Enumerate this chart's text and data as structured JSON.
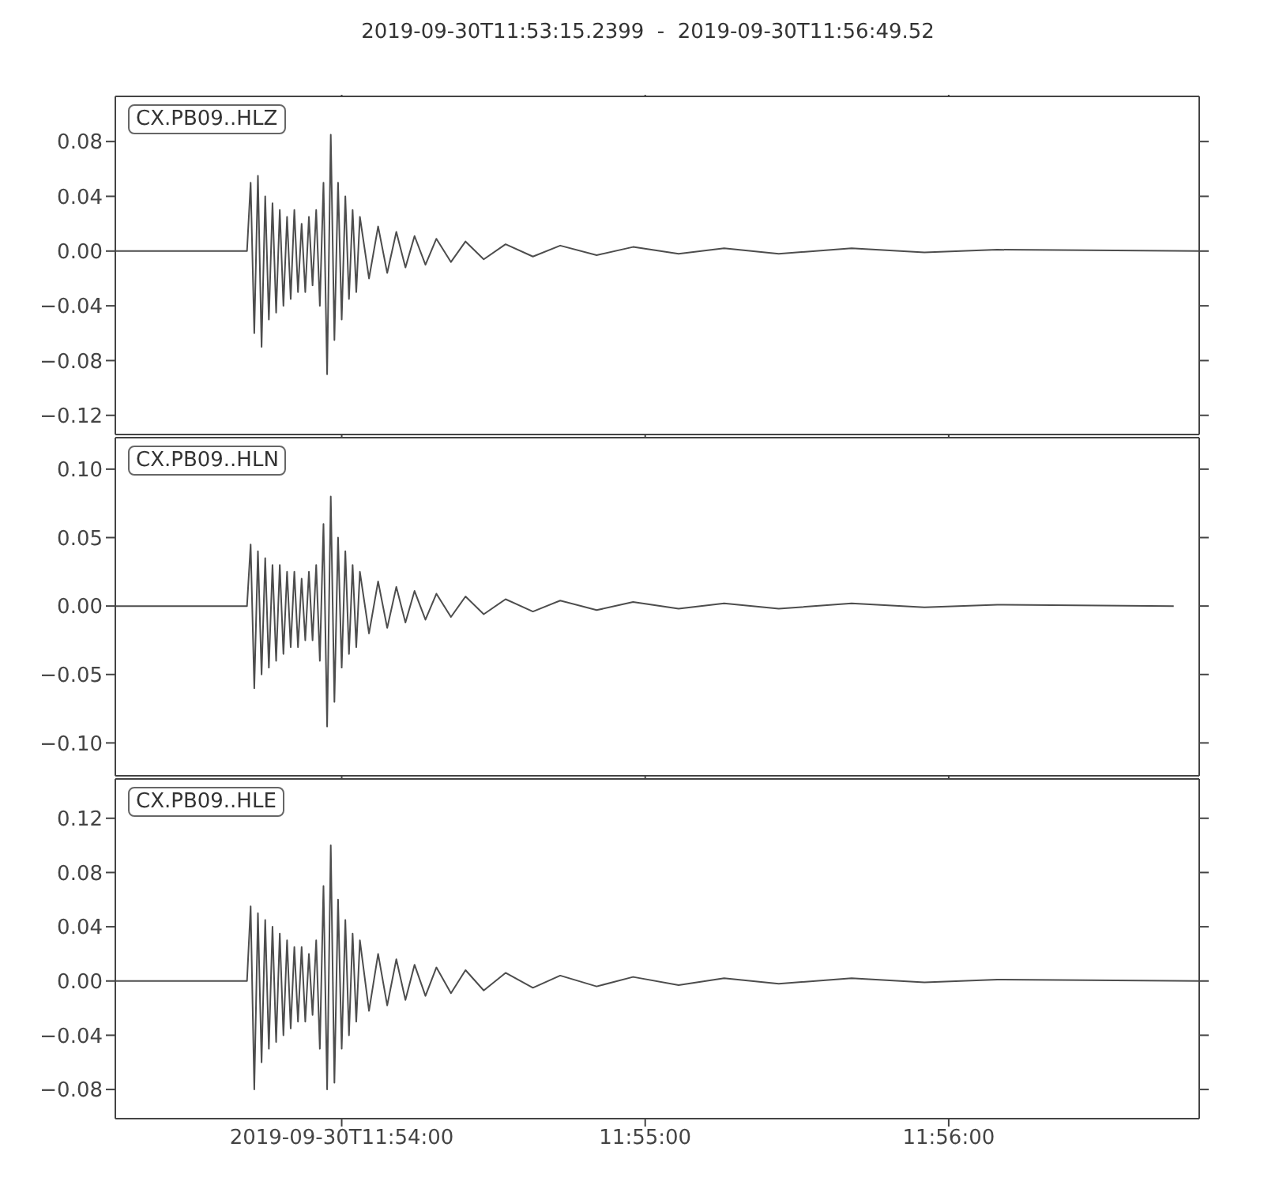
{
  "chart_data": [
    {
      "type": "line",
      "title": "2019-09-30T11:53:15.2399  -  2019-09-30T11:56:49.52",
      "annotations": [
        "CX.PB09..HLZ"
      ],
      "grid": false,
      "legend": false,
      "tick_labels": "y",
      "x": [
        11.88757,
        11.8948,
        11.895,
        11.8952,
        11.8954,
        11.8956,
        11.8958,
        11.896,
        11.8962,
        11.8964,
        11.8966,
        11.8968,
        11.897,
        11.8972,
        11.8974,
        11.8976,
        11.8978,
        11.898,
        11.8982,
        11.8984,
        11.8986,
        11.8988,
        11.899,
        11.8992,
        11.8994,
        11.8996,
        11.8998,
        11.9,
        11.9002,
        11.9004,
        11.9006,
        11.9008,
        11.901,
        11.9015,
        11.902,
        11.9025,
        11.903,
        11.9035,
        11.904,
        11.9046,
        11.9052,
        11.906,
        11.9068,
        11.9078,
        11.909,
        11.9105,
        11.912,
        11.914,
        11.916,
        11.9185,
        11.921,
        11.924,
        11.928,
        11.932,
        11.936,
        11.94709
      ],
      "series": [
        {
          "color": "#4d4d4d",
          "values": [
            0,
            0,
            0.05,
            -0.06,
            0.055,
            -0.07,
            0.04,
            -0.05,
            0.035,
            -0.045,
            0.03,
            -0.04,
            0.025,
            -0.035,
            0.03,
            -0.03,
            0.02,
            -0.03,
            0.025,
            -0.025,
            0.03,
            -0.04,
            0.05,
            -0.09,
            0.085,
            -0.065,
            0.05,
            -0.05,
            0.04,
            -0.035,
            0.03,
            -0.03,
            0.025,
            -0.02,
            0.018,
            -0.016,
            0.014,
            -0.012,
            0.011,
            -0.01,
            0.009,
            -0.008,
            0.007,
            -0.006,
            0.005,
            -0.004,
            0.004,
            -0.003,
            0.003,
            -0.002,
            0.002,
            -0.002,
            0.002,
            -0.001,
            0.001,
            0
          ]
        }
      ],
      "xlim": [
        11.88757,
        11.94709
      ],
      "xticks": [
        {
          "value": 11.9,
          "label": null
        },
        {
          "value": 11.916667,
          "label": null
        },
        {
          "value": 11.933333,
          "label": null
        }
      ],
      "ylim": [
        -0.134,
        0.113
      ],
      "yticks": [
        {
          "value": -0.12,
          "label": "−0.12"
        },
        {
          "value": -0.08,
          "label": "−0.08"
        },
        {
          "value": -0.04,
          "label": "−0.04"
        },
        {
          "value": 0,
          "label": "0.00"
        },
        {
          "value": 0.04,
          "label": "0.04"
        },
        {
          "value": 0.08,
          "label": "0.08"
        }
      ]
    },
    {
      "type": "line",
      "annotations": [
        "CX.PB09..HLN"
      ],
      "grid": false,
      "legend": false,
      "tick_labels": "y",
      "x": [
        11.88757,
        11.8948,
        11.895,
        11.8952,
        11.8954,
        11.8956,
        11.8958,
        11.896,
        11.8962,
        11.8964,
        11.8966,
        11.8968,
        11.897,
        11.8972,
        11.8974,
        11.8976,
        11.8978,
        11.898,
        11.8982,
        11.8984,
        11.8986,
        11.8988,
        11.899,
        11.8992,
        11.8994,
        11.8996,
        11.8998,
        11.9,
        11.9002,
        11.9004,
        11.9006,
        11.9008,
        11.901,
        11.9015,
        11.902,
        11.9025,
        11.903,
        11.9035,
        11.904,
        11.9046,
        11.9052,
        11.906,
        11.9068,
        11.9078,
        11.909,
        11.9105,
        11.912,
        11.914,
        11.916,
        11.9185,
        11.921,
        11.924,
        11.928,
        11.932,
        11.936,
        11.94569
      ],
      "series": [
        {
          "color": "#4d4d4d",
          "values": [
            0,
            0,
            0.045,
            -0.06,
            0.04,
            -0.05,
            0.035,
            -0.045,
            0.03,
            -0.04,
            0.03,
            -0.035,
            0.025,
            -0.03,
            0.025,
            -0.03,
            0.02,
            -0.025,
            0.025,
            -0.025,
            0.03,
            -0.04,
            0.06,
            -0.088,
            0.08,
            -0.07,
            0.05,
            -0.045,
            0.04,
            -0.035,
            0.03,
            -0.03,
            0.025,
            -0.02,
            0.018,
            -0.016,
            0.014,
            -0.012,
            0.011,
            -0.01,
            0.009,
            -0.008,
            0.007,
            -0.006,
            0.005,
            -0.004,
            0.004,
            -0.003,
            0.003,
            -0.002,
            0.002,
            -0.002,
            0.002,
            -0.001,
            0.001,
            0
          ]
        }
      ],
      "xlim": [
        11.88757,
        11.94709
      ],
      "xticks": [
        {
          "value": 11.9,
          "label": null
        },
        {
          "value": 11.916667,
          "label": null
        },
        {
          "value": 11.933333,
          "label": null
        }
      ],
      "ylim": [
        -0.124,
        0.123
      ],
      "yticks": [
        {
          "value": -0.1,
          "label": "−0.10"
        },
        {
          "value": -0.05,
          "label": "−0.05"
        },
        {
          "value": 0,
          "label": "0.00"
        },
        {
          "value": 0.05,
          "label": "0.05"
        },
        {
          "value": 0.1,
          "label": "0.10"
        }
      ]
    },
    {
      "type": "line",
      "annotations": [
        "CX.PB09..HLE"
      ],
      "grid": false,
      "legend": false,
      "x": [
        11.88757,
        11.8948,
        11.895,
        11.8952,
        11.8954,
        11.8956,
        11.8958,
        11.896,
        11.8962,
        11.8964,
        11.8966,
        11.8968,
        11.897,
        11.8972,
        11.8974,
        11.8976,
        11.8978,
        11.898,
        11.8982,
        11.8984,
        11.8986,
        11.8988,
        11.899,
        11.8992,
        11.8994,
        11.8996,
        11.8998,
        11.9,
        11.9002,
        11.9004,
        11.9006,
        11.9008,
        11.901,
        11.9015,
        11.902,
        11.9025,
        11.903,
        11.9035,
        11.904,
        11.9046,
        11.9052,
        11.906,
        11.9068,
        11.9078,
        11.909,
        11.9105,
        11.912,
        11.914,
        11.916,
        11.9185,
        11.921,
        11.924,
        11.928,
        11.932,
        11.936,
        11.94709
      ],
      "series": [
        {
          "color": "#4d4d4d",
          "values": [
            0,
            0,
            0.055,
            -0.08,
            0.05,
            -0.06,
            0.045,
            -0.05,
            0.04,
            -0.045,
            0.035,
            -0.04,
            0.03,
            -0.035,
            0.025,
            -0.03,
            0.025,
            -0.03,
            0.02,
            -0.025,
            0.03,
            -0.05,
            0.07,
            -0.08,
            0.1,
            -0.075,
            0.06,
            -0.05,
            0.045,
            -0.04,
            0.035,
            -0.03,
            0.03,
            -0.022,
            0.02,
            -0.018,
            0.016,
            -0.014,
            0.012,
            -0.011,
            0.01,
            -0.009,
            0.008,
            -0.007,
            0.006,
            -0.005,
            0.004,
            -0.004,
            0.003,
            -0.003,
            0.002,
            -0.002,
            0.002,
            -0.001,
            0.001,
            0
          ]
        }
      ],
      "xlim": [
        11.88757,
        11.94709
      ],
      "xticks": [
        {
          "value": 11.9,
          "label": "2019-09-30T11:54:00"
        },
        {
          "value": 11.916667,
          "label": "11:55:00"
        },
        {
          "value": 11.933333,
          "label": "11:56:00"
        }
      ],
      "ylim": [
        -0.1015,
        0.149
      ],
      "yticks": [
        {
          "value": -0.08,
          "label": "−0.08"
        },
        {
          "value": -0.04,
          "label": "−0.04"
        },
        {
          "value": 0,
          "label": "0.00"
        },
        {
          "value": 0.04,
          "label": "0.04"
        },
        {
          "value": 0.08,
          "label": "0.08"
        },
        {
          "value": 0.12,
          "label": "0.12"
        }
      ]
    }
  ]
}
